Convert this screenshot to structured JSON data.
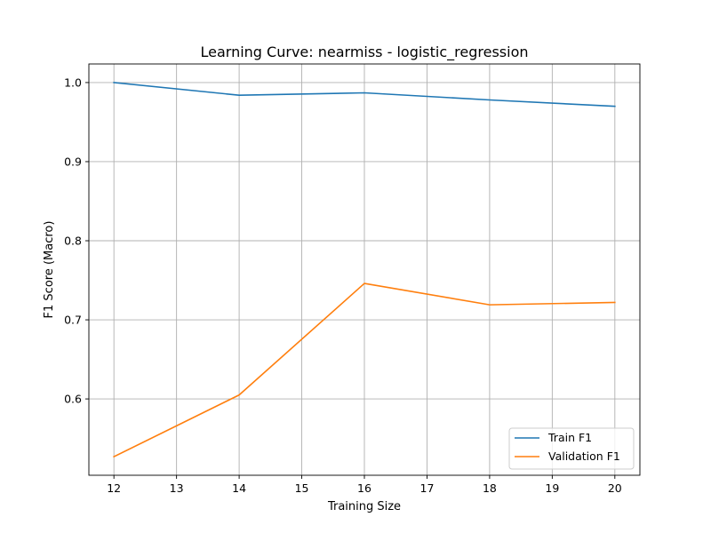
{
  "chart_data": {
    "type": "line",
    "title": "Learning Curve: nearmiss - logistic_regression",
    "xlabel": "Training Size",
    "ylabel": "F1 Score (Macro)",
    "x": [
      12,
      14,
      16,
      18,
      20
    ],
    "series": [
      {
        "name": "Train F1",
        "color": "#1f77b4",
        "values": [
          1.0,
          0.984,
          0.987,
          0.978,
          0.97
        ]
      },
      {
        "name": "Validation F1",
        "color": "#ff7f0e",
        "values": [
          0.527,
          0.605,
          0.746,
          0.719,
          0.722
        ]
      }
    ],
    "xlim": [
      11.6,
      20.4
    ],
    "ylim": [
      0.5035,
      1.0235
    ],
    "xticks": [
      12,
      13,
      14,
      15,
      16,
      17,
      18,
      19,
      20
    ],
    "xtick_labels": [
      "12",
      "13",
      "14",
      "15",
      "16",
      "17",
      "18",
      "19",
      "20"
    ],
    "yticks": [
      0.6,
      0.7,
      0.8,
      0.9,
      1.0
    ],
    "ytick_labels": [
      "0.6",
      "0.7",
      "0.8",
      "0.9",
      "1.0"
    ],
    "grid": true,
    "legend_position": "lower-right"
  }
}
